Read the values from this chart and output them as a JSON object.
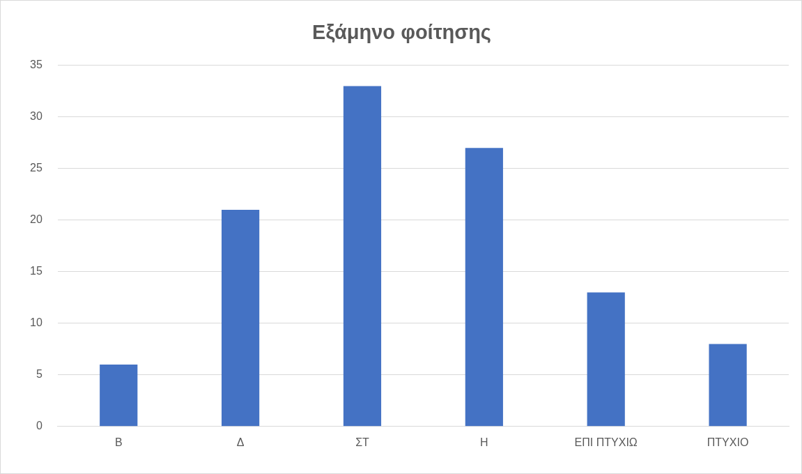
{
  "chart_data": {
    "type": "bar",
    "title": "Εξάμηνο φοίτησης",
    "categories": [
      "Β",
      "Δ",
      "ΣΤ",
      "Η",
      "ΕΠΙ ΠΤΥΧΙΩ",
      "ΠΤΥΧΙΟ"
    ],
    "values": [
      6,
      21,
      33,
      27,
      13,
      8
    ],
    "color": "#4472c4",
    "ylim": [
      0,
      35
    ],
    "yticks": [
      0,
      5,
      10,
      15,
      20,
      25,
      30,
      35
    ],
    "grid": "y",
    "legend": false
  }
}
